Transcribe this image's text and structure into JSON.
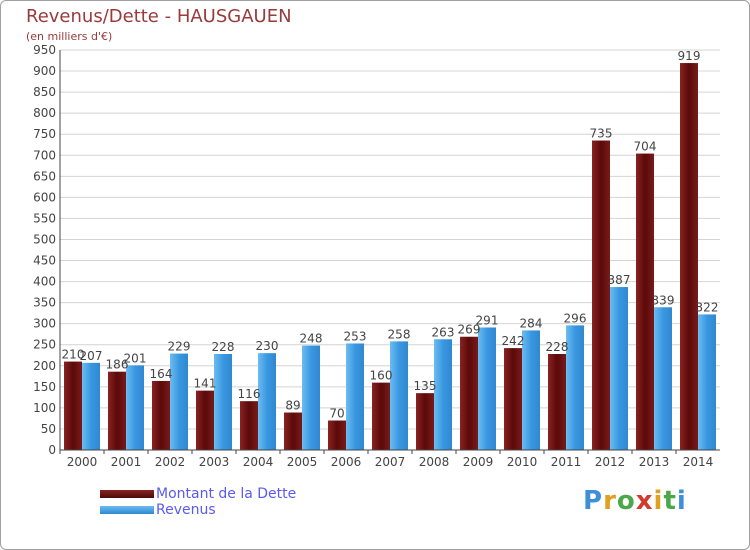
{
  "title": "Revenus/Dette - HAUSGAUEN",
  "subtitle": "(en milliers d'€)",
  "logo": "Proxiti",
  "chart_data": {
    "type": "bar",
    "categories": [
      "2000",
      "2001",
      "2002",
      "2003",
      "2004",
      "2005",
      "2006",
      "2007",
      "2008",
      "2009",
      "2010",
      "2011",
      "2012",
      "2013",
      "2014"
    ],
    "series": [
      {
        "name": "Montant de la Dette",
        "color": "#7a1a1a",
        "values": [
          210,
          186,
          164,
          141,
          116,
          89,
          70,
          160,
          135,
          269,
          242,
          228,
          735,
          704,
          919
        ]
      },
      {
        "name": "Revenus",
        "color": "#3e9ee6",
        "values": [
          207,
          201,
          229,
          228,
          230,
          248,
          253,
          258,
          263,
          291,
          284,
          296,
          387,
          339,
          322
        ]
      }
    ],
    "ylim": [
      0,
      950
    ],
    "yticks": [
      0,
      50,
      100,
      150,
      200,
      250,
      300,
      350,
      400,
      450,
      500,
      550,
      600,
      650,
      700,
      750,
      800,
      850,
      900,
      950
    ],
    "grid": true,
    "legend_position": "bottom-left"
  }
}
